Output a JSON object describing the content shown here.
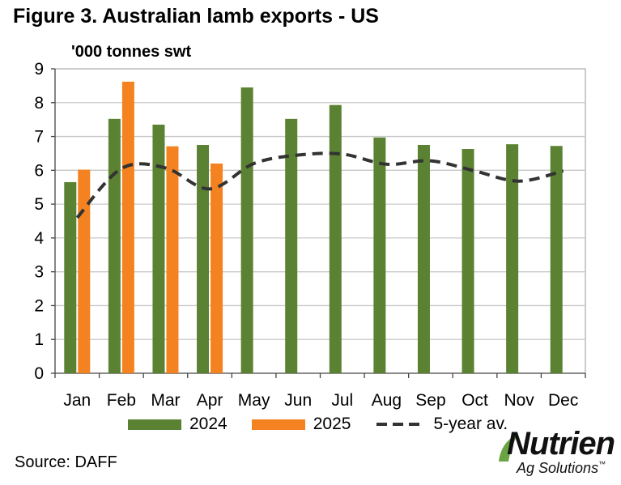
{
  "title": "Figure 3. Australian lamb exports - US",
  "unit_label": "'000 tonnes swt",
  "source": "Source: DAFF",
  "logo": {
    "name": "Nutrien",
    "subtitle": "Ag Solutions",
    "mark": "™"
  },
  "chart_data": {
    "type": "bar",
    "title": "Figure 3. Australian lamb exports - US",
    "ylabel": "'000 tonnes swt",
    "xlabel": "",
    "ylim": [
      0,
      9
    ],
    "yticks": [
      0,
      1,
      2,
      3,
      4,
      5,
      6,
      7,
      8,
      9
    ],
    "grid": true,
    "legend_position": "bottom",
    "categories": [
      "Jan",
      "Feb",
      "Mar",
      "Apr",
      "May",
      "Jun",
      "Jul",
      "Aug",
      "Sep",
      "Oct",
      "Nov",
      "Dec"
    ],
    "series": [
      {
        "name": "2024",
        "type": "bar",
        "color": "#5b8232",
        "values": [
          5.65,
          7.52,
          7.35,
          6.75,
          8.45,
          7.52,
          7.93,
          6.97,
          6.75,
          6.63,
          6.77,
          6.72
        ]
      },
      {
        "name": "2025",
        "type": "bar",
        "color": "#f58220",
        "values": [
          6.02,
          8.62,
          6.71,
          6.2,
          null,
          null,
          null,
          null,
          null,
          null,
          null,
          null
        ]
      },
      {
        "name": "5-year av.",
        "type": "line",
        "style": "dashed",
        "color": "#333333",
        "values": [
          4.6,
          6.05,
          6.07,
          5.45,
          6.2,
          6.45,
          6.48,
          6.18,
          6.28,
          5.98,
          5.68,
          5.98
        ]
      }
    ]
  }
}
